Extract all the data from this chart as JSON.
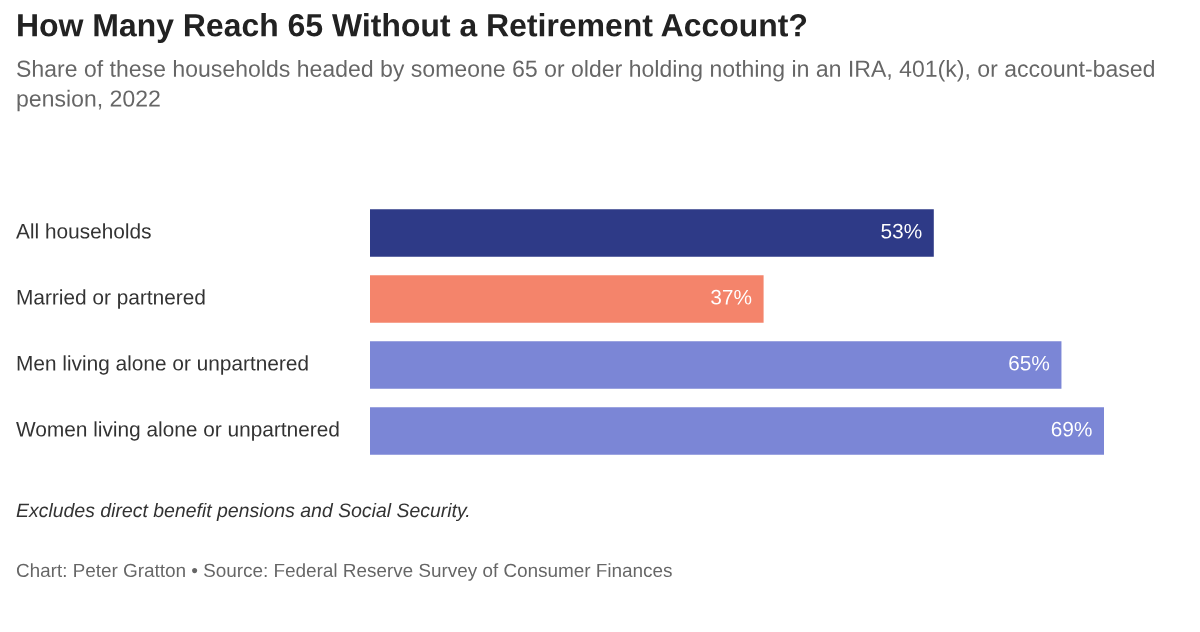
{
  "chart_data": {
    "type": "bar",
    "orientation": "horizontal",
    "title": "How Many Reach 65 Without a Retirement Account?",
    "subtitle": "Share of these households headed by someone 65 or older holding nothing in an IRA, 401(k), or account-based pension, 2022",
    "categories": [
      "All households",
      "Married or partnered",
      "Men living alone or unpartnered",
      "Women living alone or unpartnered"
    ],
    "values": [
      53,
      37,
      65,
      69
    ],
    "value_labels": [
      "53%",
      "37%",
      "65%",
      "69%"
    ],
    "colors": [
      "#2e3a87",
      "#f4846b",
      "#7b86d6",
      "#7b86d6"
    ],
    "annotations": [
      "Excludes direct benefit pensions and Social Security.",
      "Chart: Peter Gratton • Source: Federal Reserve Survey of Consumer Finances"
    ],
    "legend": false
  }
}
